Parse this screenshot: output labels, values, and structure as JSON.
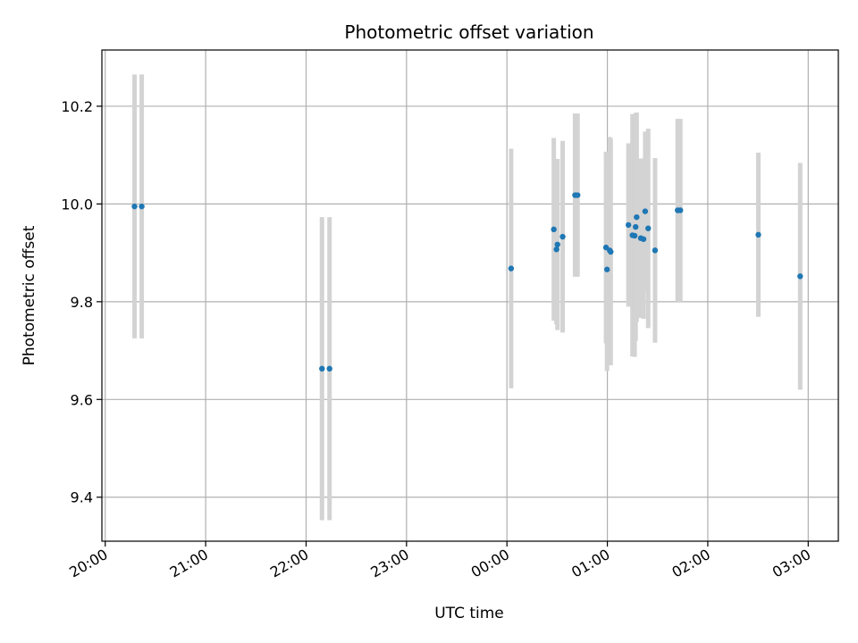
{
  "chart_data": {
    "type": "scatter",
    "title": "Photometric offset variation",
    "xlabel": "UTC time",
    "ylabel": "Photometric offset",
    "x_unit": "minutes from 20:00 UTC",
    "xlim": [
      -2,
      438
    ],
    "ylim": [
      9.31,
      10.315
    ],
    "grid": true,
    "x_ticks": [
      {
        "value": 0,
        "label": "20:00"
      },
      {
        "value": 60,
        "label": "21:00"
      },
      {
        "value": 120,
        "label": "22:00"
      },
      {
        "value": 180,
        "label": "23:00"
      },
      {
        "value": 240,
        "label": "00:00"
      },
      {
        "value": 300,
        "label": "01:00"
      },
      {
        "value": 360,
        "label": "02:00"
      },
      {
        "value": 420,
        "label": "03:00"
      }
    ],
    "y_ticks": [
      {
        "value": 9.4,
        "label": "9.4"
      },
      {
        "value": 9.6,
        "label": "9.6"
      },
      {
        "value": 9.8,
        "label": "9.8"
      },
      {
        "value": 10.0,
        "label": "10.0"
      },
      {
        "value": 10.2,
        "label": "10.2"
      }
    ],
    "colors": {
      "point": "#1f77b4",
      "errorbar": "#d3d3d3",
      "grid": "#b0b0b0"
    },
    "points": [
      {
        "x": 17.5,
        "y": 9.995,
        "err": 0.27
      },
      {
        "x": 21.8,
        "y": 9.995,
        "err": 0.27
      },
      {
        "x": 129.5,
        "y": 9.663,
        "err": 0.31
      },
      {
        "x": 134.0,
        "y": 9.663,
        "err": 0.31
      },
      {
        "x": 242.5,
        "y": 9.868,
        "err": 0.245
      },
      {
        "x": 268.0,
        "y": 9.948,
        "err": 0.187
      },
      {
        "x": 269.6,
        "y": 9.907,
        "err": 0.153
      },
      {
        "x": 270.2,
        "y": 9.917,
        "err": 0.175
      },
      {
        "x": 273.3,
        "y": 9.933,
        "err": 0.196
      },
      {
        "x": 280.7,
        "y": 10.018,
        "err": 0.167
      },
      {
        "x": 282.2,
        "y": 10.018,
        "err": 0.167
      },
      {
        "x": 299.2,
        "y": 9.911,
        "err": 0.196
      },
      {
        "x": 299.8,
        "y": 9.866,
        "err": 0.208
      },
      {
        "x": 301.4,
        "y": 9.905,
        "err": 0.232
      },
      {
        "x": 302.0,
        "y": 9.902,
        "err": 0.232
      },
      {
        "x": 312.6,
        "y": 9.957,
        "err": 0.167
      },
      {
        "x": 315.0,
        "y": 9.936,
        "err": 0.248
      },
      {
        "x": 316.3,
        "y": 9.935,
        "err": 0.248
      },
      {
        "x": 316.9,
        "y": 9.953,
        "err": 0.233
      },
      {
        "x": 317.5,
        "y": 9.973,
        "err": 0.214
      },
      {
        "x": 320.0,
        "y": 9.93,
        "err": 0.163
      },
      {
        "x": 321.6,
        "y": 9.928,
        "err": 0.163
      },
      {
        "x": 322.6,
        "y": 9.985,
        "err": 0.163
      },
      {
        "x": 324.4,
        "y": 9.95,
        "err": 0.204
      },
      {
        "x": 328.5,
        "y": 9.905,
        "err": 0.189
      },
      {
        "x": 342.0,
        "y": 9.987,
        "err": 0.187
      },
      {
        "x": 343.6,
        "y": 9.987,
        "err": 0.187
      },
      {
        "x": 390.2,
        "y": 9.937,
        "err": 0.168
      },
      {
        "x": 415.2,
        "y": 9.852,
        "err": 0.232
      }
    ]
  }
}
